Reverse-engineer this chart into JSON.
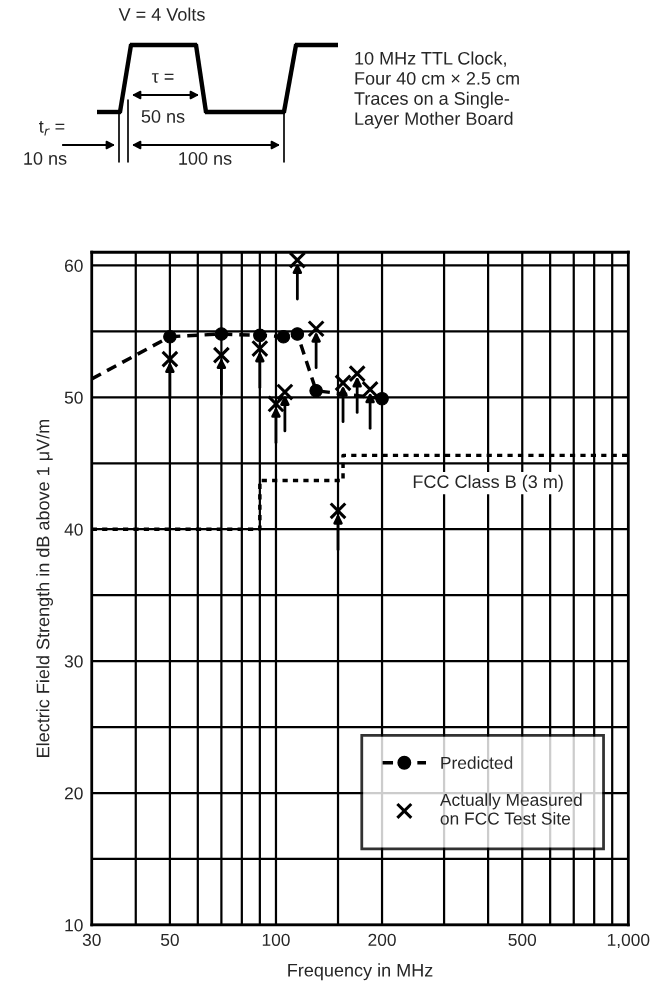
{
  "chart_data": {
    "type": "line",
    "xlabel": "Frequency in MHz",
    "ylabel": "Electric Field Strength in dB above 1 μV/m",
    "log": "x",
    "xlim": [
      30,
      1000
    ],
    "xticks": [
      30,
      {
        "value": 40,
        "label": null
      },
      50,
      {
        "value": 60,
        "label": null
      },
      {
        "value": 70,
        "label": null
      },
      {
        "value": 80,
        "label": null
      },
      {
        "value": 90,
        "label": null
      },
      100,
      {
        "value": 150,
        "label": null
      },
      200,
      {
        "value": 300,
        "label": null
      },
      {
        "value": 400,
        "label": null
      },
      500,
      {
        "value": 600,
        "label": null
      },
      {
        "value": 700,
        "label": null
      },
      {
        "value": 800,
        "label": null
      },
      {
        "value": 900,
        "label": null
      },
      {
        "value": 1000,
        "label": "1,000"
      }
    ],
    "ylim": [
      10,
      61
    ],
    "yticks": [
      10,
      {
        "value": 15,
        "label": null
      },
      20,
      {
        "value": 25,
        "label": null
      },
      30,
      {
        "value": 35,
        "label": null
      },
      40,
      {
        "value": 45,
        "label": null
      },
      50,
      {
        "value": 55,
        "label": null
      },
      60
    ],
    "grid": true,
    "legend": "bottom right",
    "series": [
      {
        "color": "#000000",
        "line_style": "dashed",
        "x": [
          30,
          50
        ],
        "values": [
          51.4,
          54.6
        ]
      },
      {
        "name": "Predicted",
        "color": "#000000",
        "line_style": "dashed",
        "marker": "circle",
        "x": [
          50,
          70,
          90,
          105,
          115,
          130,
          200
        ],
        "values": [
          54.6,
          54.8,
          54.7,
          54.6,
          54.8,
          50.5,
          49.9
        ]
      },
      {
        "name": "Actually Measured\non FCC Test Site",
        "type": "scatter",
        "color": "#000000",
        "marker": "cross",
        "x": [
          50,
          70,
          90,
          100,
          106,
          115,
          130,
          150,
          155,
          170,
          185
        ],
        "values": [
          52.9,
          53.2,
          53.7,
          49.5,
          50.4,
          60.4,
          55.2,
          41.4,
          51.1,
          51.8,
          50.6
        ]
      },
      {
        "type": "step",
        "color": "#000000",
        "line_style": "dotted",
        "marker": "none",
        "x": [
          30,
          90,
          155,
          1000
        ],
        "values": [
          40,
          43.7,
          45.6,
          45.6
        ]
      }
    ],
    "annotations": [
      {
        "text": "FCC Class B (3 m)",
        "x": 400,
        "y": 45.6
      },
      "V = 4 Volts",
      "τ =",
      "50 ns",
      "t$_{r}$ =",
      "10 ns",
      "100 ns",
      "10 MHz TTL Clock,\nFour 40 cm × 2.5 cm\nTraces on a Single-\nLayer Mother Board"
    ]
  }
}
